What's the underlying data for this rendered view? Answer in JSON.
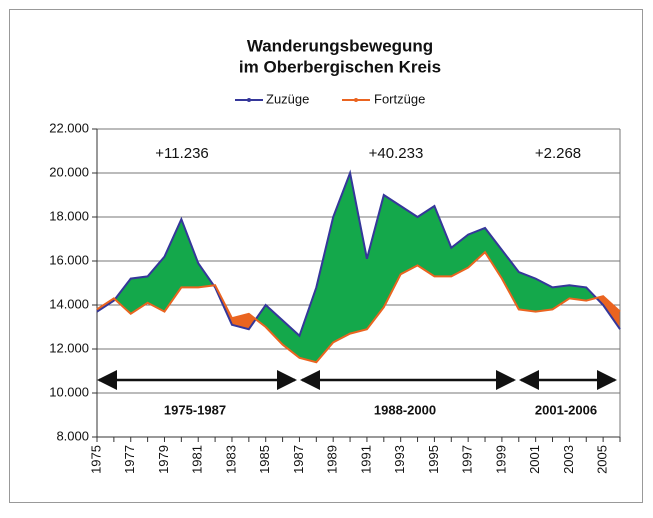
{
  "chart_data": {
    "type": "area-line",
    "title": [
      "Wanderungsbewegung",
      "im Oberbergischen Kreis"
    ],
    "categories": [
      "1975",
      null,
      "1977",
      null,
      "1979",
      null,
      "1981",
      null,
      "1983",
      null,
      "1985",
      null,
      "1987",
      null,
      "1989",
      null,
      "1991",
      null,
      "1993",
      null,
      "1995",
      null,
      "1997",
      null,
      "1999",
      null,
      "2001",
      null,
      "2003",
      null,
      "2005",
      null
    ],
    "series": [
      {
        "name": "Zuzüge",
        "color": "#35379a",
        "values": [
          13700,
          14200,
          15200,
          15300,
          16200,
          17900,
          15900,
          14800,
          13100,
          12900,
          14000,
          13300,
          12600,
          14800,
          18000,
          20000,
          16100,
          19000,
          18500,
          18000,
          18500,
          16600,
          17200,
          17500,
          16500,
          15500,
          15200,
          14800,
          14900,
          14800,
          14000,
          12900
        ]
      },
      {
        "name": "Fortzüge",
        "color": "#ea6420",
        "values": [
          13800,
          14300,
          13600,
          14100,
          13700,
          14800,
          14800,
          14900,
          13400,
          13600,
          13000,
          12200,
          11600,
          11400,
          12300,
          12700,
          12900,
          13900,
          15400,
          15800,
          15300,
          15300,
          15700,
          16400,
          15200,
          13800,
          13700,
          13800,
          14300,
          14200,
          14400,
          13700
        ]
      }
    ],
    "surplus_color": "#14a84b",
    "deficit_color": "#ea6420",
    "ylim": [
      8000,
      22000
    ],
    "yticks": [
      {
        "value": 8000,
        "label": "8.000"
      },
      {
        "value": 10000,
        "label": "10.000"
      },
      {
        "value": 12000,
        "label": "12.000"
      },
      {
        "value": 14000,
        "label": "14.000"
      },
      {
        "value": 16000,
        "label": "16.000"
      },
      {
        "value": 18000,
        "label": "18.000"
      },
      {
        "value": 20000,
        "label": "20.000"
      },
      {
        "value": 22000,
        "label": "22.000"
      }
    ],
    "grid": true,
    "annotations": [
      {
        "period": "1975-1987",
        "balance": "+11.236"
      },
      {
        "period": "1988-2000",
        "balance": "+40.233"
      },
      {
        "period": "2001-2006",
        "balance": "+2.268"
      }
    ]
  }
}
